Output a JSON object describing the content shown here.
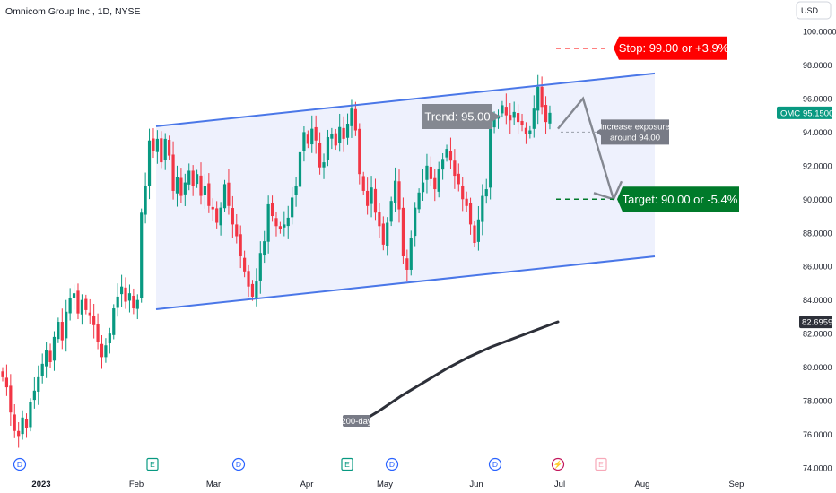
{
  "header": {
    "title": "Omnicom Group Inc., 1D, NYSE"
  },
  "currency_button": {
    "label": "USD"
  },
  "chart_data": {
    "type": "candlestick",
    "symbol": "OMC",
    "interval": "1D",
    "exchange": "NYSE",
    "ylim": [
      74,
      100
    ],
    "x_tick_labels": [
      "2023",
      "Feb",
      "Mar",
      "Apr",
      "May",
      "Jun",
      "Jul",
      "Aug",
      "Sep"
    ],
    "y_tick_labels": [
      "100.0000",
      "98.0000",
      "96.0000",
      "94.0000",
      "92.0000",
      "90.0000",
      "88.0000",
      "86.0000",
      "84.0000",
      "82.0000",
      "80.0000",
      "78.0000",
      "76.0000",
      "74.0000"
    ],
    "last_price": {
      "ticker": "OMC",
      "value": "95.1500"
    },
    "sma_price": {
      "value": "82.6959"
    },
    "candles_close": [
      79.4,
      78.8,
      77.3,
      76.2,
      75.9,
      77.0,
      76.4,
      77.9,
      78.6,
      79.4,
      80.2,
      81.0,
      80.3,
      81.8,
      82.7,
      81.6,
      83.3,
      84.1,
      84.4,
      83.2,
      84.0,
      83.4,
      83.1,
      82.5,
      81.5,
      80.6,
      81.3,
      82.0,
      83.5,
      84.2,
      84.8,
      83.9,
      84.4,
      83.5,
      84.0,
      89.2,
      90.8,
      93.5,
      92.9,
      93.6,
      92.2,
      93.6,
      92.6,
      90.5,
      91.3,
      90.2,
      91.0,
      91.7,
      90.8,
      91.5,
      90.2,
      90.8,
      89.6,
      89.4,
      88.6,
      89.5,
      90.9,
      89.6,
      88.5,
      87.8,
      86.6,
      85.7,
      84.8,
      84.2,
      85.1,
      86.8,
      87.5,
      89.7,
      89.0,
      88.4,
      88.2,
      88.5,
      88.9,
      90.1,
      90.8,
      92.8,
      94.0,
      93.3,
      94.2,
      93.5,
      91.9,
      92.2,
      93.7,
      93.9,
      93.2,
      94.3,
      93.6,
      94.5,
      95.4,
      94.1,
      91.5,
      90.5,
      89.6,
      90.7,
      89.2,
      88.4,
      87.3,
      88.6,
      89.9,
      91.1,
      89.4,
      86.6,
      85.8,
      87.7,
      89.5,
      90.4,
      91.0,
      92.0,
      91.2,
      90.6,
      91.8,
      92.4,
      93.0,
      92.3,
      91.4,
      90.9,
      90.0,
      89.6,
      88.5,
      87.4,
      88.8,
      90.2,
      90.6,
      94.4,
      94.8,
      95.0,
      95.6,
      95.0,
      94.7,
      95.2,
      94.6,
      94.4,
      93.9,
      94.1,
      95.4,
      96.7,
      95.5,
      94.6,
      95.15
    ],
    "upper_channel_line": {
      "start": 94.35,
      "end": 97.5
    },
    "lower_channel_line": {
      "start": 83.45,
      "end": 86.6
    },
    "sma_200_label": "200-day",
    "sma_200": [
      76.6,
      77.4,
      78.3,
      79.1,
      79.9,
      80.6,
      81.2,
      81.7,
      82.2,
      82.7
    ],
    "stop": {
      "label": "Stop: 99.00 or +3.9%",
      "price": 99.0
    },
    "target": {
      "label": "Target: 90.00 or -5.4%",
      "price": 90.0
    },
    "trend": {
      "label": "Trend: 95.00",
      "price": 95.0
    },
    "exposure_note": {
      "line1": "increase exposure",
      "line2": "around 94.00",
      "price": 94.0
    },
    "projection_path_prices": [
      94.2,
      96.0,
      90.0
    ],
    "event_markers": [
      "D",
      "E",
      "D",
      "E",
      "D",
      "D",
      "⚡",
      "E"
    ]
  },
  "colors": {
    "up": "#089981",
    "down": "#f23645",
    "channel_line": "#4a77e8",
    "channel_fill": "#eef1fd",
    "stop": "#ff0000",
    "target": "#007a2a",
    "trend": "#848891",
    "sma": "#2d3039"
  }
}
